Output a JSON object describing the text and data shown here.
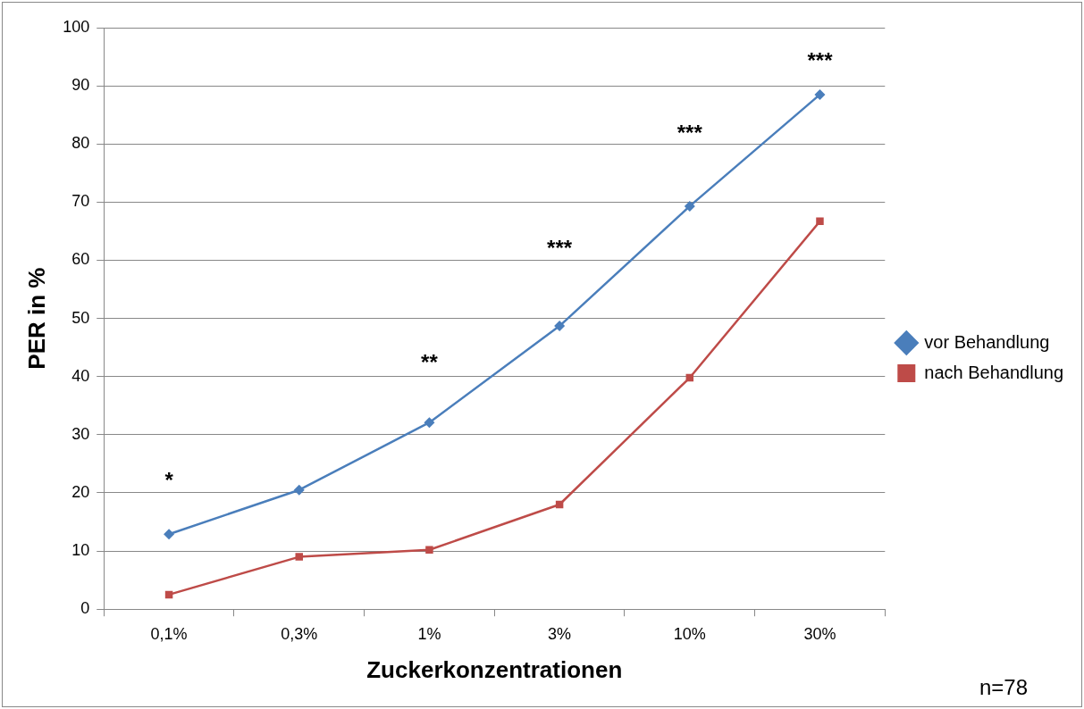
{
  "chart_data": {
    "type": "line",
    "xlabel": "Zuckerkonzentrationen",
    "ylabel": "PER in %",
    "categories": [
      "0,1%",
      "0,3%",
      "1%",
      "3%",
      "10%",
      "30%"
    ],
    "series": [
      {
        "name": "vor Behandlung",
        "color": "#4a7ebb",
        "marker": "diamond",
        "values": [
          12.9,
          20.5,
          32.1,
          48.7,
          69.3,
          88.5
        ]
      },
      {
        "name": "nach Behandlung",
        "color": "#be4b48",
        "marker": "square",
        "values": [
          2.5,
          9.0,
          10.2,
          18.0,
          39.8,
          66.7
        ]
      }
    ],
    "ylim": [
      0,
      100
    ],
    "yticks": [
      0,
      10,
      20,
      30,
      40,
      50,
      60,
      70,
      80,
      90,
      100
    ],
    "grid": "y",
    "legend": "right",
    "line_style": "solid",
    "annotations": [
      "*",
      "**",
      "***",
      "***",
      "***",
      "n=78"
    ]
  }
}
